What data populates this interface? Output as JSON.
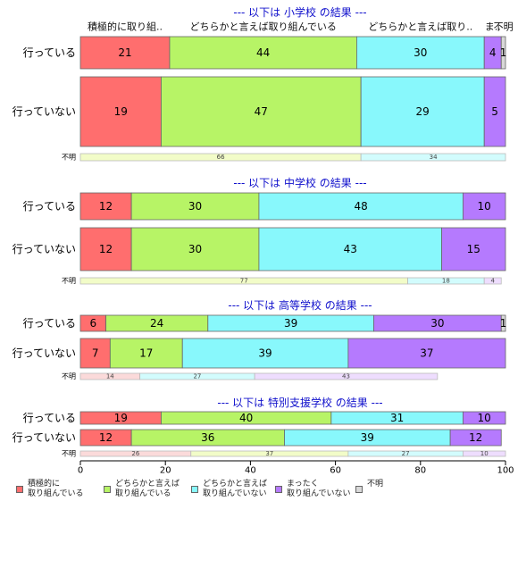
{
  "chart_data": {
    "type": "bar",
    "orientation": "horizontal",
    "stacked": "percent",
    "xlim": [
      0,
      100
    ],
    "xticks": [
      0,
      20,
      40,
      60,
      80,
      100
    ],
    "categories": [
      "積極的に取り組んでいる",
      "どちらかと言えば取り組んでいる",
      "どちらかと言えば取り組んでいない",
      "まったく取り組んでいない",
      "不明"
    ],
    "top_category_labels": [
      "積極的に取り組..",
      "どちらかと言えば取り組んでいる",
      "どちらかと言えば取り..",
      "ま..",
      "不明"
    ],
    "colors": [
      "#FF6E6E",
      "#B7F466",
      "#88F8FC",
      "#B57AFE",
      "#D8D8D8"
    ],
    "legend": {
      "position": "bottom",
      "labels": [
        "積極的に\n取り組んでいる",
        "どちらかと言えば\n取り組んでいる",
        "どちらかと言えば\n取り組んでいない",
        "まったく\n取り組んでいない",
        "不明"
      ]
    },
    "groups": [
      {
        "title": "--- 以下は 小学校 の結果 ---",
        "rows": [
          {
            "label": "行っている",
            "values": [
              21,
              44,
              30,
              4,
              1
            ]
          },
          {
            "label": "行っていない",
            "values": [
              19,
              47,
              29,
              5,
              0
            ]
          },
          {
            "label": "不明",
            "values": [
              0,
              66,
              34,
              0,
              0
            ]
          }
        ]
      },
      {
        "title": "--- 以下は 中学校 の結果 ---",
        "rows": [
          {
            "label": "行っている",
            "values": [
              12,
              30,
              48,
              10,
              0
            ]
          },
          {
            "label": "行っていない",
            "values": [
              12,
              30,
              43,
              15,
              0
            ]
          },
          {
            "label": "不明",
            "values": [
              0,
              77,
              18,
              4,
              0
            ]
          }
        ]
      },
      {
        "title": "--- 以下は 高等学校 の結果 ---",
        "rows": [
          {
            "label": "行っている",
            "values": [
              6,
              24,
              39,
              30,
              1
            ]
          },
          {
            "label": "行っていない",
            "values": [
              7,
              17,
              39,
              37,
              0
            ]
          },
          {
            "label": "不明",
            "values": [
              14,
              0,
              27,
              43,
              0
            ]
          }
        ]
      },
      {
        "title": "--- 以下は 特別支援学校 の結果 ---",
        "rows": [
          {
            "label": "行っている",
            "values": [
              19,
              40,
              31,
              10,
              0
            ]
          },
          {
            "label": "行っていない",
            "values": [
              12,
              36,
              39,
              12,
              0
            ]
          },
          {
            "label": "不明",
            "values": [
              26,
              37,
              27,
              10,
              0
            ]
          }
        ]
      }
    ]
  }
}
